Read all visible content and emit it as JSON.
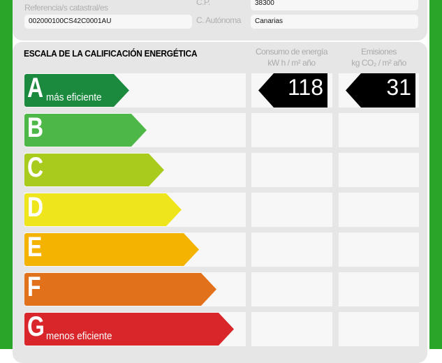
{
  "property": {
    "cadastral_label": "Referencia/s catastral/es",
    "cadastral_value": "002000100CS42C0001AU",
    "cp_label": "C.P.",
    "cp_value": "38300",
    "region_label": "C. Autónoma",
    "region_value": "Canarias"
  },
  "scale": {
    "title": "ESCALA DE LA CALIFICACIÓN ENERGÉTICA",
    "consumption_header": [
      "Consumo de energía",
      "kW h / m² año"
    ],
    "emissions_header": [
      "Emisiones",
      "kg CO₂ / m² año"
    ],
    "ratings": [
      {
        "letter": "A",
        "label": "más eficiente",
        "color": "#1b8a3f"
      },
      {
        "letter": "B",
        "label": "",
        "color": "#4db848"
      },
      {
        "letter": "C",
        "label": "",
        "color": "#a9cb1d"
      },
      {
        "letter": "D",
        "label": "",
        "color": "#efe51c"
      },
      {
        "letter": "E",
        "label": "",
        "color": "#f4b300"
      },
      {
        "letter": "F",
        "label": "",
        "color": "#e2711b"
      },
      {
        "letter": "G",
        "label": "menos eficiente",
        "color": "#d8262b"
      }
    ],
    "current_rating": "A",
    "consumption_value": "118",
    "emissions_value": "31"
  },
  "border_color": "#2aa52a"
}
